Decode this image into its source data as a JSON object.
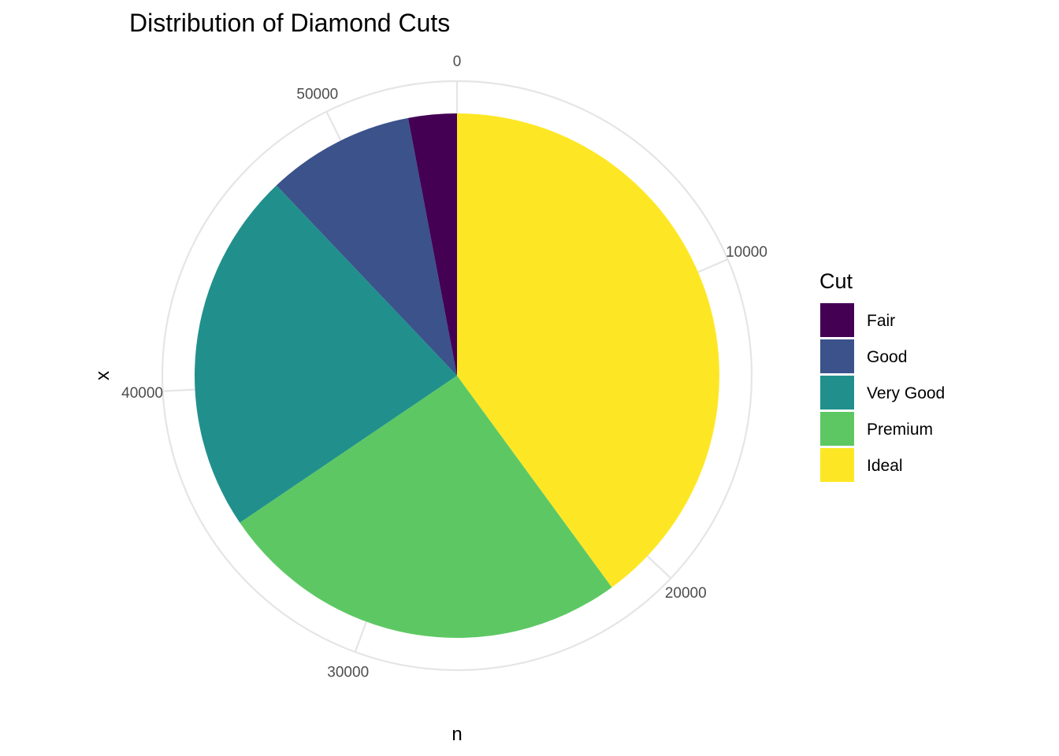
{
  "chart_data": {
    "type": "pie",
    "title": "Distribution of Diamond Cuts",
    "xlabel": "n",
    "ylabel": "x",
    "legend_title": "Cut",
    "legend_position": "right",
    "grid": true,
    "theta_ticks": [
      0,
      10000,
      20000,
      30000,
      40000,
      50000
    ],
    "theta_max": 53940,
    "slices": [
      {
        "label": "Fair",
        "value": 1610,
        "color": "#440154"
      },
      {
        "label": "Good",
        "value": 4906,
        "color": "#3B528B"
      },
      {
        "label": "Very Good",
        "value": 12082,
        "color": "#21908C"
      },
      {
        "label": "Premium",
        "value": 13791,
        "color": "#5DC863"
      },
      {
        "label": "Ideal",
        "value": 21551,
        "color": "#FDE725"
      }
    ]
  }
}
